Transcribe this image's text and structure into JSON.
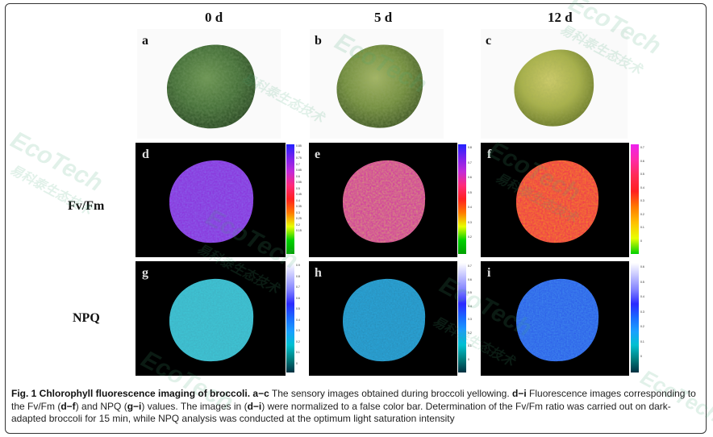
{
  "columns": [
    "0 d",
    "5 d",
    "12 d"
  ],
  "rows": [
    "Fv/Fm",
    "NPQ"
  ],
  "panels": {
    "a": "a",
    "b": "b",
    "c": "c",
    "d": "d",
    "e": "e",
    "f": "f",
    "g": "g",
    "h": "h",
    "i": "i"
  },
  "colorbars": {
    "fvfm_d": [
      "0.85",
      "0.8",
      "0.75",
      "0.7",
      "0.65",
      "0.6",
      "0.55",
      "0.5",
      "0.45",
      "0.4",
      "0.35",
      "0.3",
      "0.25",
      "0.2",
      "0.15"
    ],
    "fvfm_e": [
      "0.8",
      "0.7",
      "0.6",
      "0.5",
      "0.4",
      "0.3",
      "0.2"
    ],
    "fvfm_f": [
      "0.7",
      "0.6",
      "0.5",
      "0.4",
      "0.3",
      "0.2",
      "0.1",
      "0"
    ],
    "npq_g": [
      "0.9",
      "0.8",
      "0.7",
      "0.6",
      "0.5",
      "0.4",
      "0.3",
      "0.2",
      "0.1",
      "0"
    ],
    "npq_h": [
      "0.7",
      "0.6",
      "0.5",
      "0.4",
      "0.3",
      "0.2",
      "0.1",
      "0"
    ],
    "npq_i": [
      "0.6",
      "0.5",
      "0.4",
      "0.3",
      "0.2",
      "0.1",
      "0"
    ]
  },
  "caption": {
    "title": "Fig. 1 Chlorophyll fluorescence imaging of broccoli.",
    "p1_bold": "a−c",
    "p1": " The sensory images obtained during broccoli yellowing. ",
    "p2_bold": "d−i",
    "p2": " Fluorescence images corresponding to the Fv/Fm (",
    "p3_bold": "d−f",
    "p3": ") and NPQ (",
    "p4_bold": "g−i",
    "p4": ") values. The images in (",
    "p5_bold": "d−i",
    "p5": ") were normalized to a false color bar. Determination of the Fv/Fm ratio was carried out on dark-adapted broccoli for 15 min, while NPQ analysis was conducted at the optimum light saturation intensity"
  },
  "watermark": {
    "brand": "EcoTech",
    "cn": "易科泰生态技术"
  },
  "colors": {
    "broccoli_0d": "#3f6a32",
    "broccoli_5d": "#6f8b3a",
    "broccoli_12d": "#a9b24a",
    "fvfm_0d": "#8a2bd8",
    "fvfm_5d": "#d22aa6",
    "fvfm_12d": "#ee2a55",
    "npq_0d": "#3ec8d8",
    "npq_5d": "#2aa7dc",
    "npq_12d": "#2a57e8"
  }
}
